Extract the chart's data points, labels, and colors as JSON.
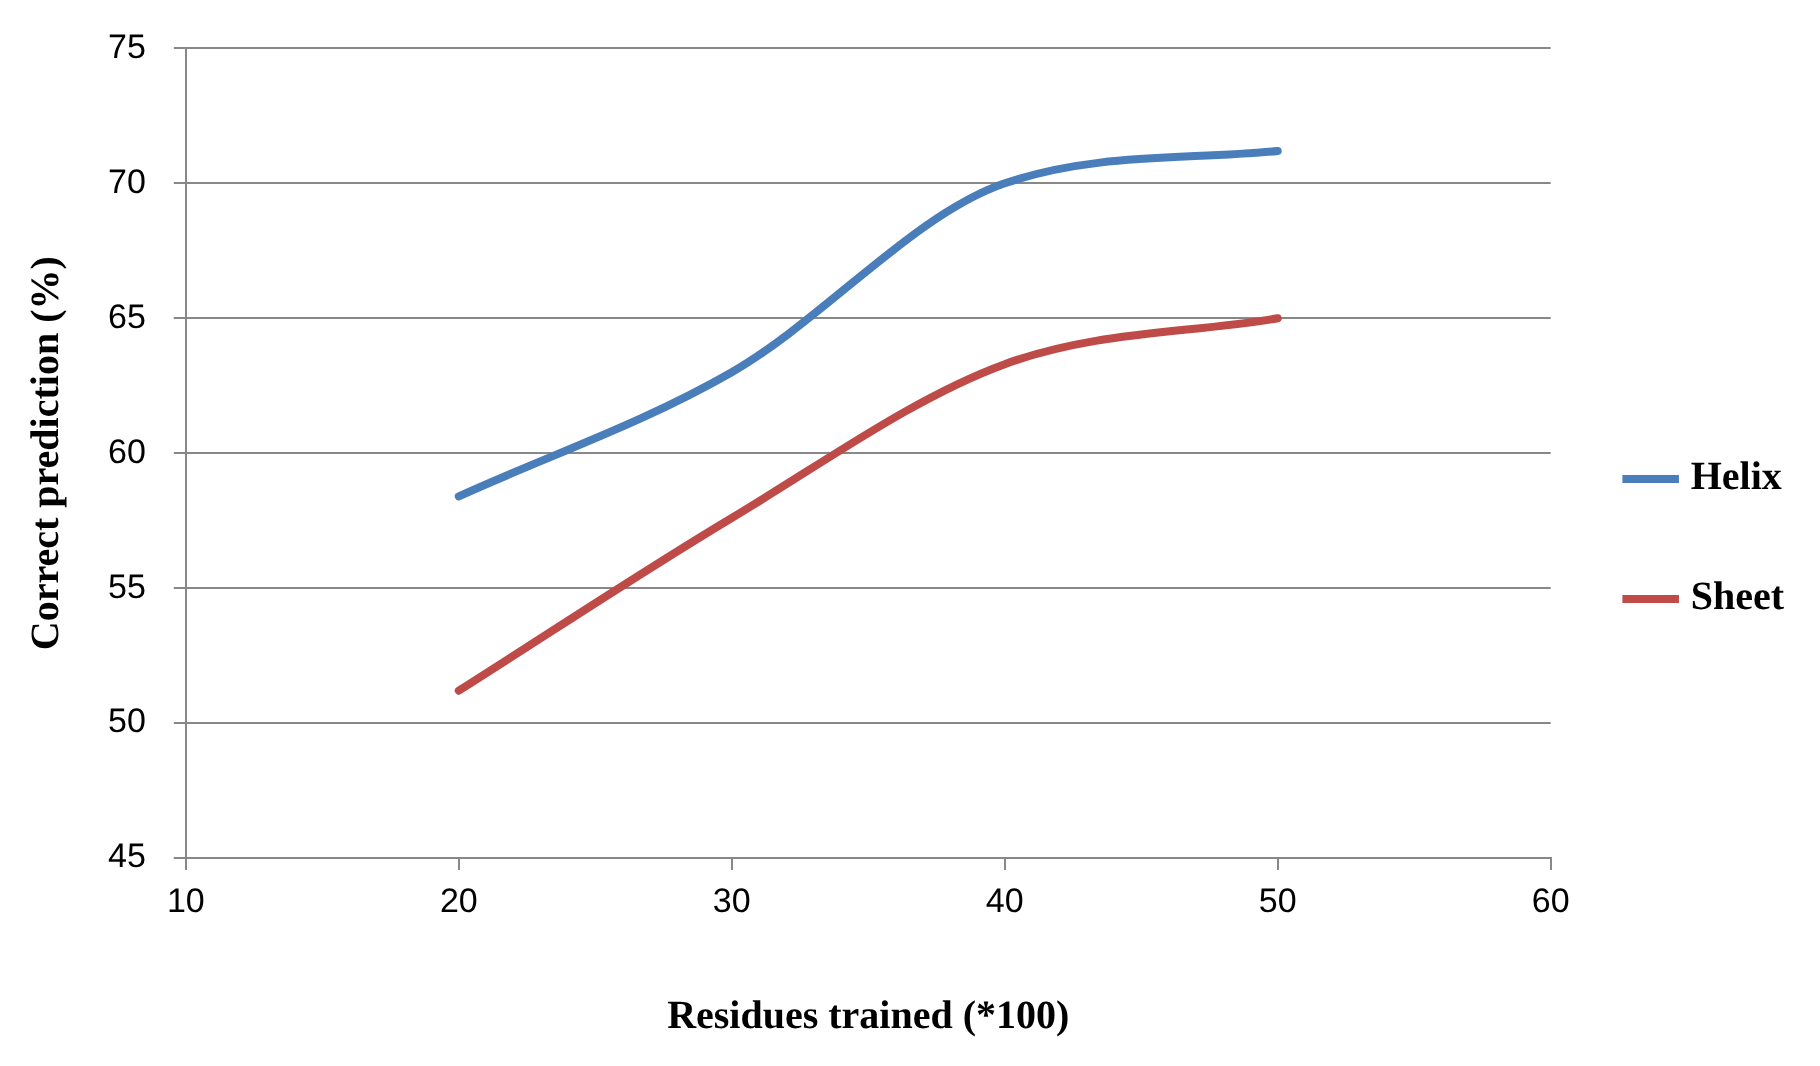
{
  "chart_data": {
    "type": "line",
    "xlabel": "Residues trained (*100)",
    "ylabel": "Correct prediction (%)",
    "x": [
      20,
      30,
      40,
      50
    ],
    "series": [
      {
        "name": "Helix",
        "color": "#4a7ebb",
        "values": [
          58.4,
          63.0,
          70.0,
          71.2
        ]
      },
      {
        "name": "Sheet",
        "color": "#be4b48",
        "values": [
          51.2,
          57.6,
          63.3,
          65.0
        ]
      }
    ],
    "xlim": [
      10,
      60
    ],
    "xticks": [
      10,
      20,
      30,
      40,
      50,
      60
    ],
    "ylim": [
      45,
      75
    ],
    "yticks": [
      45,
      50,
      55,
      60,
      65,
      70,
      75
    ],
    "grid": "y",
    "legend": "right",
    "marker": "none",
    "line_style": "solid"
  }
}
